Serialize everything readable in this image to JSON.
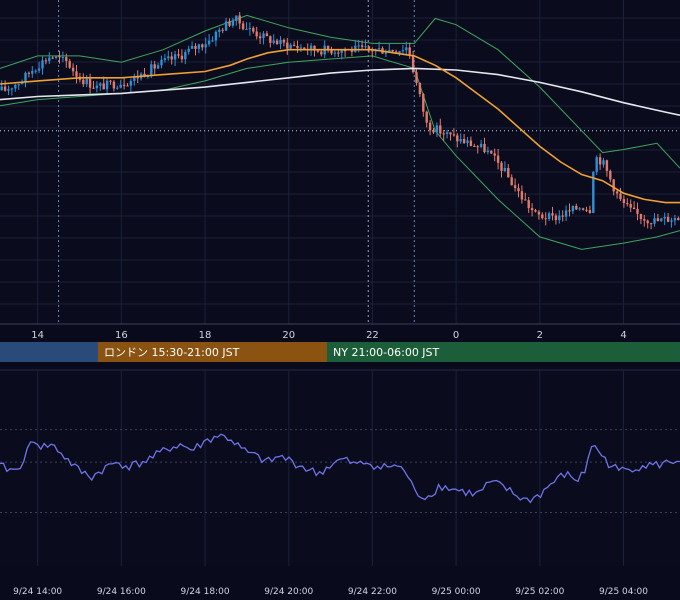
{
  "chart_data": [
    {
      "type": "candlestick",
      "description_units": "hours since 9/24 00:00 JST on x axis; price on y axis (unlabeled)",
      "x_tick_labels": [
        "14",
        "16",
        "18",
        "20",
        "22",
        "0",
        "2",
        "4"
      ],
      "x_tick_hours": [
        14,
        16,
        18,
        20,
        22,
        24,
        26,
        28
      ],
      "xlim": [
        13.1,
        29.35
      ],
      "ylim": [
        0,
        100
      ],
      "colors": {
        "up": "#2e8fd6",
        "down": "#e07a6a",
        "sma_fast": "#f0a030",
        "sma_slow": "#e6e6ee",
        "bollinger": "#3fa65a"
      },
      "guide_lines": {
        "dashed_vertical_hours": [
          14.5,
          23.0
        ],
        "dashed_vertical_light_hour": 21.9,
        "dotted_horizontal_level": 60
      },
      "key_path": [
        [
          13.2,
          73
        ],
        [
          13.6,
          76
        ],
        [
          13.9,
          80
        ],
        [
          14.3,
          84
        ],
        [
          14.7,
          82
        ],
        [
          15.0,
          77
        ],
        [
          15.4,
          74
        ],
        [
          15.8,
          75
        ],
        [
          16.2,
          76
        ],
        [
          16.6,
          79
        ],
        [
          17.0,
          82
        ],
        [
          17.4,
          84
        ],
        [
          17.8,
          87
        ],
        [
          18.1,
          89
        ],
        [
          18.4,
          93
        ],
        [
          18.7,
          96
        ],
        [
          19.0,
          93
        ],
        [
          19.4,
          90
        ],
        [
          19.8,
          88
        ],
        [
          20.2,
          87
        ],
        [
          20.6,
          86
        ],
        [
          21.0,
          86
        ],
        [
          21.4,
          86
        ],
        [
          21.8,
          86
        ],
        [
          22.2,
          86
        ],
        [
          22.6,
          86
        ],
        [
          22.85,
          87
        ],
        [
          23.0,
          78
        ],
        [
          23.15,
          70
        ],
        [
          23.3,
          62
        ],
        [
          23.6,
          60
        ],
        [
          23.9,
          58
        ],
        [
          24.3,
          56
        ],
        [
          24.7,
          54
        ],
        [
          25.1,
          48
        ],
        [
          25.5,
          40
        ],
        [
          25.9,
          33
        ],
        [
          26.3,
          32
        ],
        [
          26.7,
          34
        ],
        [
          27.0,
          36
        ],
        [
          27.2,
          35
        ],
        [
          27.3,
          52
        ],
        [
          27.5,
          50
        ],
        [
          27.7,
          44
        ],
        [
          27.9,
          38
        ],
        [
          28.2,
          34
        ],
        [
          28.5,
          32
        ],
        [
          28.8,
          31
        ],
        [
          29.1,
          32
        ],
        [
          29.35,
          32
        ]
      ],
      "sma_fast": [
        [
          13.1,
          75
        ],
        [
          14.0,
          76
        ],
        [
          15.0,
          77
        ],
        [
          16.0,
          77
        ],
        [
          17.0,
          78
        ],
        [
          18.0,
          79
        ],
        [
          18.6,
          81
        ],
        [
          19.0,
          83
        ],
        [
          19.5,
          85
        ],
        [
          20.0,
          86
        ],
        [
          20.5,
          86
        ],
        [
          21.0,
          86
        ],
        [
          21.5,
          86
        ],
        [
          22.0,
          86
        ],
        [
          22.5,
          85
        ],
        [
          23.0,
          84
        ],
        [
          23.5,
          81
        ],
        [
          24.0,
          77
        ],
        [
          24.5,
          72
        ],
        [
          25.0,
          67
        ],
        [
          25.5,
          61
        ],
        [
          26.0,
          55
        ],
        [
          26.5,
          50
        ],
        [
          27.0,
          46
        ],
        [
          27.5,
          44
        ],
        [
          28.0,
          40
        ],
        [
          28.5,
          38
        ],
        [
          29.0,
          37
        ],
        [
          29.35,
          37
        ]
      ],
      "sma_slow": [
        [
          13.1,
          70
        ],
        [
          14.0,
          71
        ],
        [
          15.0,
          71.5
        ],
        [
          16.0,
          72
        ],
        [
          17.0,
          73
        ],
        [
          18.0,
          74
        ],
        [
          19.0,
          75.5
        ],
        [
          20.0,
          77
        ],
        [
          21.0,
          78.5
        ],
        [
          22.0,
          79.5
        ],
        [
          23.0,
          80
        ],
        [
          24.0,
          79.5
        ],
        [
          25.0,
          78
        ],
        [
          26.0,
          75.5
        ],
        [
          27.0,
          72.5
        ],
        [
          28.0,
          69
        ],
        [
          29.0,
          66
        ],
        [
          29.35,
          65
        ]
      ],
      "bollinger_upper": [
        [
          13.1,
          80
        ],
        [
          14.0,
          84
        ],
        [
          15.0,
          84
        ],
        [
          16.0,
          82
        ],
        [
          17.0,
          86
        ],
        [
          18.0,
          92
        ],
        [
          19.0,
          97
        ],
        [
          20.0,
          93
        ],
        [
          21.0,
          90
        ],
        [
          22.0,
          88
        ],
        [
          23.0,
          88
        ],
        [
          23.5,
          96
        ],
        [
          24.0,
          94
        ],
        [
          25.0,
          86
        ],
        [
          26.0,
          74
        ],
        [
          27.0,
          60
        ],
        [
          27.5,
          53
        ],
        [
          28.0,
          54
        ],
        [
          28.8,
          56
        ],
        [
          29.35,
          48
        ]
      ],
      "bollinger_lower": [
        [
          13.1,
          68
        ],
        [
          14.0,
          70
        ],
        [
          15.0,
          71
        ],
        [
          16.0,
          72
        ],
        [
          17.0,
          73
        ],
        [
          18.0,
          76
        ],
        [
          19.0,
          80
        ],
        [
          20.0,
          82
        ],
        [
          21.0,
          83
        ],
        [
          22.0,
          84
        ],
        [
          23.0,
          80
        ],
        [
          23.5,
          60
        ],
        [
          24.0,
          52
        ],
        [
          25.0,
          38
        ],
        [
          26.0,
          26
        ],
        [
          27.0,
          22
        ],
        [
          28.0,
          24
        ],
        [
          28.8,
          26
        ],
        [
          29.35,
          28
        ]
      ]
    },
    {
      "type": "line",
      "x_tick_labels": [
        "9/24 14:00",
        "9/24 16:00",
        "9/24 18:00",
        "9/24 20:00",
        "9/24 22:00",
        "9/25 00:00",
        "9/25 02:00",
        "9/25 04:00"
      ],
      "x_tick_hours": [
        14,
        16,
        18,
        20,
        22,
        24,
        26,
        28
      ],
      "xlim": [
        13.1,
        29.35
      ],
      "ylim": [
        0,
        100
      ],
      "color": "#6f72e8",
      "points": [
        [
          13.1,
          55
        ],
        [
          13.5,
          52
        ],
        [
          13.7,
          62
        ],
        [
          13.9,
          74
        ],
        [
          14.1,
          68
        ],
        [
          14.3,
          70
        ],
        [
          14.5,
          66
        ],
        [
          14.7,
          60
        ],
        [
          15.0,
          52
        ],
        [
          15.3,
          48
        ],
        [
          15.6,
          54
        ],
        [
          15.9,
          58
        ],
        [
          16.2,
          55
        ],
        [
          16.5,
          58
        ],
        [
          16.8,
          62
        ],
        [
          17.1,
          67
        ],
        [
          17.4,
          70
        ],
        [
          17.7,
          66
        ],
        [
          18.0,
          72
        ],
        [
          18.3,
          76
        ],
        [
          18.6,
          74
        ],
        [
          18.9,
          66
        ],
        [
          19.2,
          62
        ],
        [
          19.5,
          58
        ],
        [
          19.8,
          62
        ],
        [
          20.1,
          58
        ],
        [
          20.4,
          54
        ],
        [
          20.7,
          50
        ],
        [
          21.0,
          56
        ],
        [
          21.3,
          60
        ],
        [
          21.6,
          56
        ],
        [
          21.9,
          58
        ],
        [
          22.2,
          54
        ],
        [
          22.5,
          56
        ],
        [
          22.8,
          52
        ],
        [
          23.0,
          38
        ],
        [
          23.3,
          34
        ],
        [
          23.6,
          42
        ],
        [
          23.9,
          40
        ],
        [
          24.2,
          38
        ],
        [
          24.5,
          36
        ],
        [
          24.8,
          44
        ],
        [
          25.1,
          42
        ],
        [
          25.4,
          36
        ],
        [
          25.7,
          32
        ],
        [
          26.0,
          36
        ],
        [
          26.3,
          44
        ],
        [
          26.6,
          50
        ],
        [
          26.9,
          46
        ],
        [
          27.1,
          52
        ],
        [
          27.2,
          70
        ],
        [
          27.4,
          66
        ],
        [
          27.6,
          58
        ],
        [
          27.9,
          52
        ],
        [
          28.2,
          54
        ],
        [
          28.5,
          56
        ],
        [
          28.8,
          56
        ],
        [
          29.1,
          58
        ],
        [
          29.35,
          60
        ]
      ],
      "dotted_horizontal_levels": [
        80,
        58,
        24
      ]
    }
  ],
  "sessions": [
    {
      "label": "",
      "color": "#2a4a7a"
    },
    {
      "label": "ロンドン 15:30-21:00 JST",
      "color": "#8a5312"
    },
    {
      "label": "NY 21:00-06:00 JST",
      "color": "#1d5e3a"
    }
  ]
}
